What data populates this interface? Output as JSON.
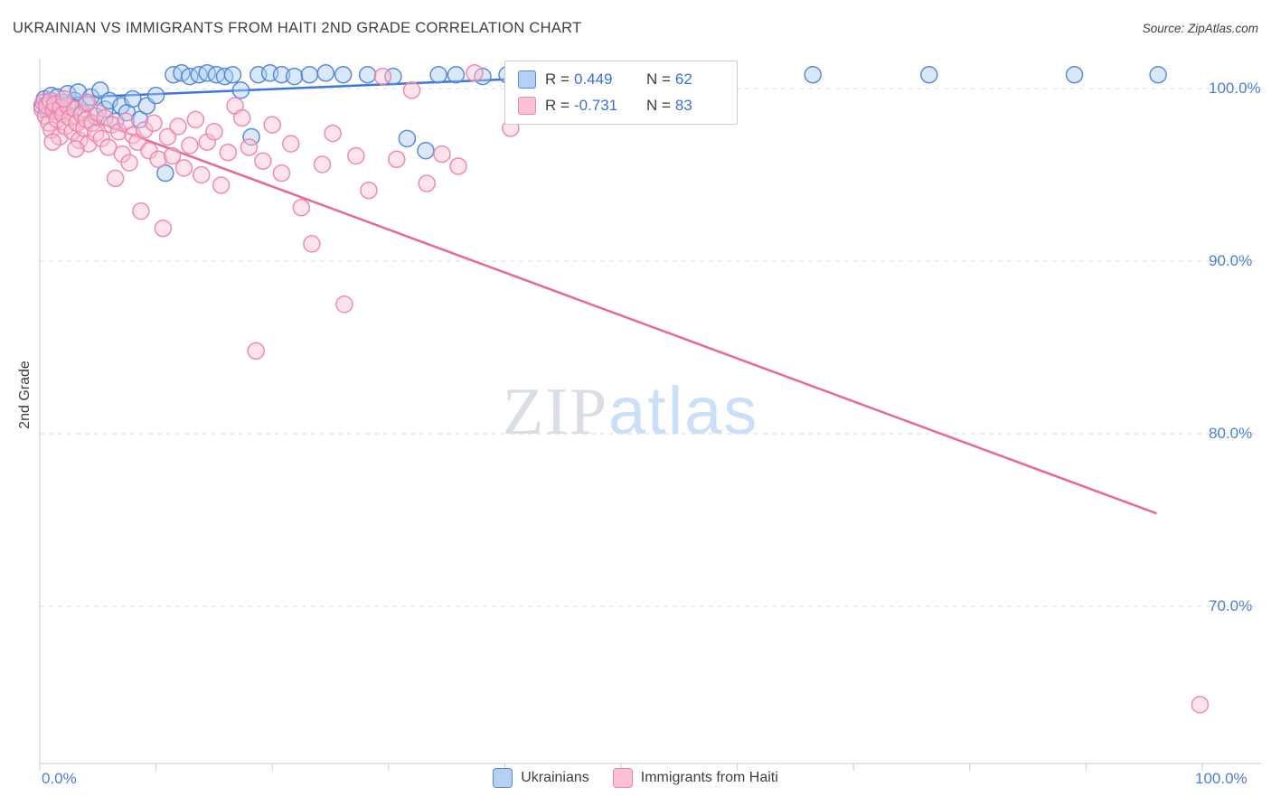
{
  "header": {
    "title": "UKRAINIAN VS IMMIGRANTS FROM HAITI 2ND GRADE CORRELATION CHART",
    "source": "Source: ZipAtlas.com"
  },
  "axes": {
    "y_label": "2nd Grade",
    "y_ticks": [
      {
        "label": "100.0%",
        "value": 100
      },
      {
        "label": "90.0%",
        "value": 90
      },
      {
        "label": "80.0%",
        "value": 80
      },
      {
        "label": "70.0%",
        "value": 70
      }
    ],
    "x_tick_labels": {
      "left": "0.0%",
      "right": "100.0%"
    }
  },
  "legend_box": {
    "rows": [
      {
        "series": "Ukrainians",
        "r_label": "R =",
        "r_value": "0.449",
        "n_label": "N =",
        "n_value": "62"
      },
      {
        "series": "Immigrants from Haiti",
        "r_label": "R =",
        "r_value": "-0.731",
        "n_label": "N =",
        "n_value": "83"
      }
    ]
  },
  "bottom_legend": {
    "items": [
      {
        "label": "Ukrainians"
      },
      {
        "label": "Immigrants from Haiti"
      }
    ]
  },
  "watermark": {
    "zip": "ZIP",
    "atlas": "atlas"
  },
  "colors": {
    "blue_stroke": "#4a7fd4",
    "blue_fill": "#aecff5",
    "pink_stroke": "#ee7fa8",
    "pink_fill": "#fbc0d2",
    "blue_trend": "#3b77d8",
    "pink_trend": "#e8679a",
    "grid": "#d9dce1",
    "axis": "#c8cbd0",
    "tick_text": "#4a7fd4"
  },
  "chart_data": {
    "type": "scatter",
    "title": "UKRAINIAN VS IMMIGRANTS FROM HAITI 2ND GRADE CORRELATION CHART",
    "xlabel": "",
    "ylabel": "2nd Grade",
    "xlim": [
      0,
      100
    ],
    "ylim": [
      61,
      101.7
    ],
    "x_tick_step": 10,
    "y_gridlines": [
      100,
      90,
      80,
      70
    ],
    "grid": "dashed-horizontal",
    "legend_position": "top-center",
    "series": [
      {
        "name": "Ukrainians",
        "R": 0.449,
        "N": 62,
        "points": [
          [
            0.2,
            99.0
          ],
          [
            0.4,
            99.4
          ],
          [
            0.6,
            98.8
          ],
          [
            0.8,
            99.2
          ],
          [
            1.0,
            99.6
          ],
          [
            1.3,
            99.0
          ],
          [
            1.5,
            99.5
          ],
          [
            1.8,
            98.7
          ],
          [
            2.1,
            99.2
          ],
          [
            2.4,
            99.7
          ],
          [
            2.7,
            98.9
          ],
          [
            3.0,
            99.3
          ],
          [
            3.3,
            99.8
          ],
          [
            3.7,
            98.6
          ],
          [
            4.0,
            99.1
          ],
          [
            4.4,
            99.5
          ],
          [
            4.8,
            98.4
          ],
          [
            5.2,
            99.9
          ],
          [
            5.6,
            98.8
          ],
          [
            6.0,
            99.3
          ],
          [
            6.5,
            98.1
          ],
          [
            7.0,
            99.0
          ],
          [
            7.5,
            98.6
          ],
          [
            8.0,
            99.4
          ],
          [
            8.6,
            98.2
          ],
          [
            9.2,
            99.0
          ],
          [
            10.0,
            99.6
          ],
          [
            10.8,
            95.1
          ],
          [
            11.5,
            100.8
          ],
          [
            12.2,
            100.9
          ],
          [
            12.9,
            100.7
          ],
          [
            13.7,
            100.8
          ],
          [
            14.4,
            100.9
          ],
          [
            15.2,
            100.8
          ],
          [
            15.9,
            100.7
          ],
          [
            16.6,
            100.8
          ],
          [
            17.3,
            99.9
          ],
          [
            18.2,
            97.2
          ],
          [
            18.8,
            100.8
          ],
          [
            19.8,
            100.9
          ],
          [
            20.8,
            100.8
          ],
          [
            21.9,
            100.7
          ],
          [
            23.2,
            100.8
          ],
          [
            24.6,
            100.9
          ],
          [
            26.1,
            100.8
          ],
          [
            28.2,
            100.8
          ],
          [
            30.4,
            100.7
          ],
          [
            31.6,
            97.1
          ],
          [
            33.2,
            96.4
          ],
          [
            34.3,
            100.8
          ],
          [
            35.8,
            100.8
          ],
          [
            38.1,
            100.7
          ],
          [
            40.2,
            100.8
          ],
          [
            42.3,
            100.9
          ],
          [
            44.5,
            100.8
          ],
          [
            47.3,
            100.9
          ],
          [
            50.9,
            100.8
          ],
          [
            55.2,
            100.9
          ],
          [
            66.5,
            100.8
          ],
          [
            76.5,
            100.8
          ],
          [
            89.0,
            100.8
          ],
          [
            96.2,
            100.8
          ]
        ]
      },
      {
        "name": "Immigrants from Haiti",
        "R": -0.731,
        "N": 83,
        "points": [
          [
            0.2,
            98.8
          ],
          [
            0.3,
            99.2
          ],
          [
            0.5,
            98.4
          ],
          [
            0.6,
            99.0
          ],
          [
            0.8,
            98.0
          ],
          [
            0.9,
            99.3
          ],
          [
            1.0,
            97.6
          ],
          [
            1.2,
            98.7
          ],
          [
            1.3,
            99.1
          ],
          [
            1.5,
            98.2
          ],
          [
            1.7,
            97.2
          ],
          [
            1.8,
            98.9
          ],
          [
            2.0,
            98.5
          ],
          [
            2.2,
            97.8
          ],
          [
            2.4,
            99.0
          ],
          [
            2.6,
            98.3
          ],
          [
            2.8,
            97.5
          ],
          [
            3.0,
            98.8
          ],
          [
            3.2,
            98.0
          ],
          [
            3.4,
            97.0
          ],
          [
            3.6,
            98.5
          ],
          [
            3.8,
            97.7
          ],
          [
            4.0,
            98.2
          ],
          [
            4.2,
            96.8
          ],
          [
            4.5,
            98.0
          ],
          [
            4.8,
            97.4
          ],
          [
            5.0,
            98.6
          ],
          [
            5.3,
            97.1
          ],
          [
            5.6,
            98.3
          ],
          [
            5.9,
            96.6
          ],
          [
            6.2,
            97.9
          ],
          [
            6.5,
            94.8
          ],
          [
            6.8,
            97.5
          ],
          [
            7.1,
            96.2
          ],
          [
            7.4,
            98.1
          ],
          [
            7.7,
            95.7
          ],
          [
            8.0,
            97.3
          ],
          [
            8.4,
            96.9
          ],
          [
            8.7,
            92.9
          ],
          [
            9.0,
            97.6
          ],
          [
            9.4,
            96.4
          ],
          [
            9.8,
            98.0
          ],
          [
            10.2,
            95.9
          ],
          [
            10.6,
            91.9
          ],
          [
            11.0,
            97.2
          ],
          [
            11.4,
            96.1
          ],
          [
            11.9,
            97.8
          ],
          [
            12.4,
            95.4
          ],
          [
            12.9,
            96.7
          ],
          [
            13.4,
            98.2
          ],
          [
            13.9,
            95.0
          ],
          [
            14.4,
            96.9
          ],
          [
            15.0,
            97.5
          ],
          [
            15.6,
            94.4
          ],
          [
            16.2,
            96.3
          ],
          [
            16.8,
            99.0
          ],
          [
            17.4,
            98.3
          ],
          [
            18.0,
            96.6
          ],
          [
            18.6,
            84.8
          ],
          [
            19.2,
            95.8
          ],
          [
            20.0,
            97.9
          ],
          [
            20.8,
            95.1
          ],
          [
            21.6,
            96.8
          ],
          [
            22.5,
            93.1
          ],
          [
            23.4,
            91.0
          ],
          [
            24.3,
            95.6
          ],
          [
            25.2,
            97.4
          ],
          [
            26.2,
            87.5
          ],
          [
            27.2,
            96.1
          ],
          [
            28.3,
            94.1
          ],
          [
            29.5,
            100.7
          ],
          [
            30.7,
            95.9
          ],
          [
            32.0,
            99.9
          ],
          [
            33.3,
            94.5
          ],
          [
            34.6,
            96.2
          ],
          [
            36.0,
            95.5
          ],
          [
            37.4,
            100.9
          ],
          [
            40.5,
            97.7
          ],
          [
            2.1,
            99.4
          ],
          [
            4.1,
            99.2
          ],
          [
            1.1,
            96.9
          ],
          [
            3.1,
            96.5
          ],
          [
            99.8,
            64.3
          ]
        ]
      }
    ],
    "trend_lines": [
      {
        "series": "Ukrainians",
        "x1": 0,
        "y1": 99.4,
        "x2": 53,
        "y2": 100.9
      },
      {
        "series": "Immigrants from Haiti",
        "x1": 0,
        "y1": 99.3,
        "x2": 96,
        "y2": 75.4
      }
    ]
  }
}
